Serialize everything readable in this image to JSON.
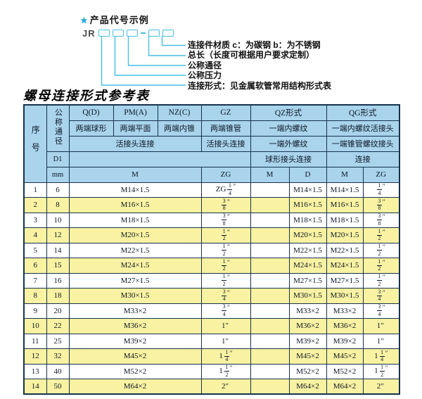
{
  "diagram": {
    "star": "★",
    "heading": "产品代号示例",
    "code": "JR",
    "labels": [
      "连接件材质  c：为碳钢  b：为不锈钢",
      "总长（长度可根据用户要求定制）",
      "公称通径",
      "公称压力",
      "连接形式：见金属软管常用结构形式表"
    ]
  },
  "table_title": "螺母连接形式参考表",
  "table": {
    "header": {
      "row_no": "序号",
      "dn": "公称通径",
      "d1": "D1",
      "unit": "mm",
      "col_q": "Q(D)",
      "col_q_sub": "两端球形",
      "col_pm": "PM(A)",
      "col_pm_sub": "两端平面",
      "col_nz": "NZ(C)",
      "col_nz_sub": "两端内锥",
      "union_conn": "活接头连接",
      "col_gz": "GZ",
      "col_gz_sub": "两端锥管",
      "col_qz": "QZ形式",
      "qz_sub1": "一端内螺纹",
      "qz_sub2": "一端外螺纹",
      "qz_conn": "球形接头连接",
      "col_qg": "QG形式",
      "qg_sub1": "一端内螺纹活接头",
      "qg_sub2": "一端锥管螺纹接头",
      "qg_conn": "连接",
      "m": "M",
      "d": "D",
      "zg": "ZG"
    },
    "rows": [
      {
        "no": "1",
        "dn": "6",
        "m": "M14×1.5",
        "gz": "ZG 1/4″",
        "qz_m": "",
        "qz_d": "M14×1.5",
        "qg_m": "M14×1.5",
        "qg_zg": "1/4″"
      },
      {
        "no": "2",
        "dn": "8",
        "m": "M16×1.5",
        "gz": "3/8″",
        "qz_m": "",
        "qz_d": "M16×1.5",
        "qg_m": "M16×1.5",
        "qg_zg": "3/8″"
      },
      {
        "no": "3",
        "dn": "10",
        "m": "M18×1.5",
        "gz": "3/8″",
        "qz_m": "",
        "qz_d": "M18×1.5",
        "qg_m": "M18×1.5",
        "qg_zg": "3/8″"
      },
      {
        "no": "4",
        "dn": "12",
        "m": "M20×1.5",
        "gz": "1/2″",
        "qz_m": "",
        "qz_d": "M20×1.5",
        "qg_m": "M20×1.5",
        "qg_zg": "1/2″"
      },
      {
        "no": "5",
        "dn": "14",
        "m": "M22×1.5",
        "gz": "1/2″",
        "qz_m": "",
        "qz_d": "M22×1.5",
        "qg_m": "M22×1.5",
        "qg_zg": "1/2″"
      },
      {
        "no": "6",
        "dn": "15",
        "m": "M24×1.5",
        "gz": "1/2″",
        "qz_m": "",
        "qz_d": "M24×1.5",
        "qg_m": "M24×1.5",
        "qg_zg": "1/2″"
      },
      {
        "no": "7",
        "dn": "16",
        "m": "M27×1.5",
        "gz": "1/2″",
        "qz_m": "",
        "qz_d": "M27×1.5",
        "qg_m": "M27×1.5",
        "qg_zg": "1/2″"
      },
      {
        "no": "8",
        "dn": "18",
        "m": "M30×1.5",
        "gz": "3/4″",
        "qz_m": "",
        "qz_d": "M30×1.5",
        "qg_m": "M30×1.5",
        "qg_zg": "3/4″"
      },
      {
        "no": "9",
        "dn": "20",
        "m": "M33×2",
        "gz": "3/4″",
        "qz_m": "",
        "qz_d": "M33×2",
        "qg_m": "M33×2",
        "qg_zg": "3/4″"
      },
      {
        "no": "10",
        "dn": "22",
        "m": "M36×2",
        "gz": "1″",
        "qz_m": "",
        "qz_d": "M36×2",
        "qg_m": "M36×2",
        "qg_zg": "1″"
      },
      {
        "no": "11",
        "dn": "25",
        "m": "M39×2",
        "gz": "1″",
        "qz_m": "",
        "qz_d": "M39×2",
        "qg_m": "M39×2",
        "qg_zg": "1″"
      },
      {
        "no": "12",
        "dn": "32",
        "m": "M45×2",
        "gz": "1 1/4″",
        "qz_m": "",
        "qz_d": "M45×2",
        "qg_m": "M45×2",
        "qg_zg": "1 1/4″"
      },
      {
        "no": "13",
        "dn": "40",
        "m": "M52×2",
        "gz": "1 1/2″",
        "qz_m": "",
        "qz_d": "M52×2",
        "qg_m": "M52×2",
        "qg_zg": "1 1/2″"
      },
      {
        "no": "14",
        "dn": "50",
        "m": "M64×2",
        "gz": "2″",
        "qz_m": "",
        "qz_d": "M64×2",
        "qg_m": "M64×2",
        "qg_zg": "2″"
      }
    ]
  },
  "colors": {
    "header_bg": "#a9d4ec",
    "row_alt_bg": "#f8f2a2",
    "border": "#15334d",
    "line": "#45bfe3",
    "star": "#2aa7d8"
  }
}
